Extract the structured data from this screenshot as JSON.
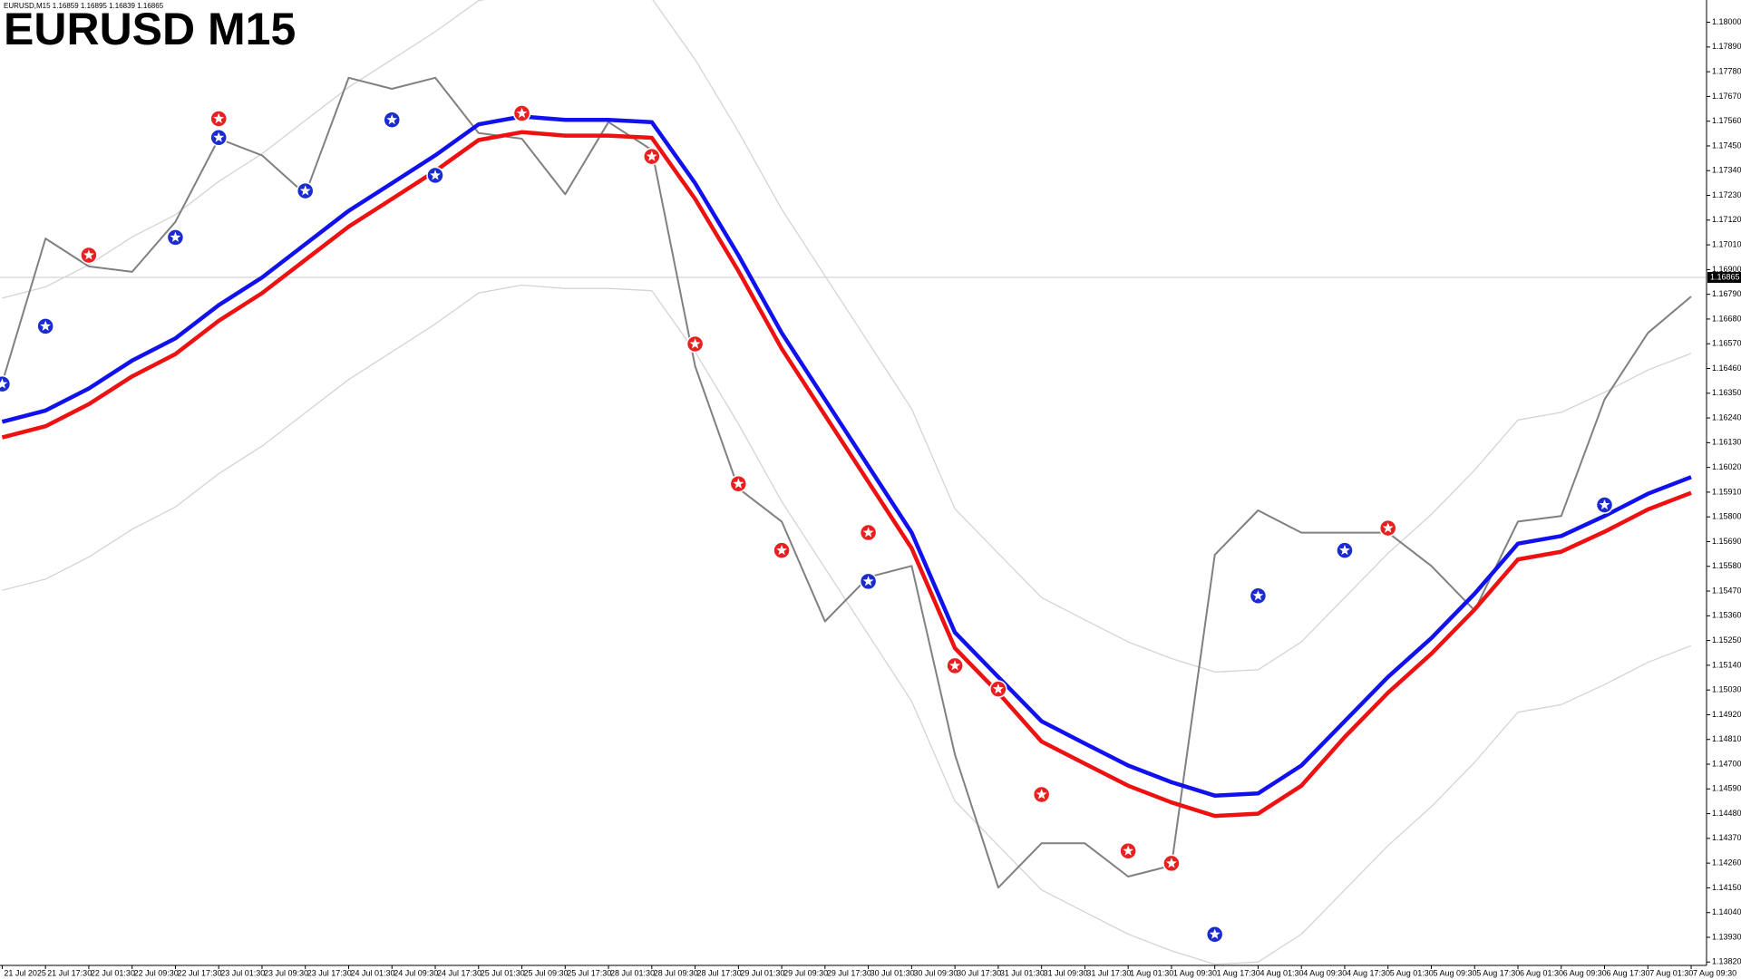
{
  "chart_data": {
    "type": "line",
    "title": "EURUSD M15",
    "header": "EURUSD,M15  1.16859 1.16895 1.16839 1.16865",
    "current_price": 1.16865,
    "current_price_color": "#c8c8c8",
    "categories": [
      "21 Jul 2025",
      "21 Jul 17:30",
      "22 Jul 01:30",
      "22 Jul 09:30",
      "22 Jul 17:30",
      "23 Jul 01:30",
      "23 Jul 09:30",
      "23 Jul 17:30",
      "24 Jul 01:30",
      "24 Jul 09:30",
      "24 Jul 17:30",
      "25 Jul 01:30",
      "25 Jul 09:30",
      "25 Jul 17:30",
      "28 Jul 01:30",
      "28 Jul 09:30",
      "28 Jul 17:30",
      "29 Jul 01:30",
      "29 Jul 09:30",
      "29 Jul 17:30",
      "30 Jul 01:30",
      "30 Jul 09:30",
      "30 Jul 17:30",
      "31 Jul 01:30",
      "31 Jul 09:30",
      "31 Jul 17:30",
      "1 Aug 01:30",
      "1 Aug 09:30",
      "1 Aug 17:30",
      "4 Aug 01:30",
      "4 Aug 09:30",
      "4 Aug 17:30",
      "5 Aug 01:30",
      "5 Aug 09:30",
      "5 Aug 17:30",
      "6 Aug 01:30",
      "6 Aug 09:30",
      "6 Aug 17:30",
      "7 Aug 01:30",
      "7 Aug 09:30"
    ],
    "series": [
      {
        "style": "band",
        "color": "#d4d4d4",
        "values": [
          1.16773,
          1.16823,
          1.16921,
          1.17045,
          1.17144,
          1.17292,
          1.17415,
          1.17563,
          1.17711,
          1.17834,
          1.17958,
          1.18096,
          1.18131,
          1.18116,
          1.18116,
          1.18106,
          1.17834,
          1.17514,
          1.17168,
          1.16872,
          1.16576,
          1.1628,
          1.15836,
          1.15638,
          1.15441,
          1.15342,
          1.15244,
          1.1517,
          1.1511,
          1.1512,
          1.15244,
          1.15441,
          1.15638,
          1.15811,
          1.16008,
          1.16231,
          1.16265,
          1.16354,
          1.16453,
          1.16527
        ]
      },
      {
        "style": "band",
        "color": "#d4d4d4",
        "values": [
          1.15473,
          1.15523,
          1.15621,
          1.15745,
          1.15844,
          1.15992,
          1.16115,
          1.16263,
          1.16411,
          1.16534,
          1.16658,
          1.16796,
          1.16831,
          1.16816,
          1.16816,
          1.16806,
          1.16534,
          1.16214,
          1.15868,
          1.15572,
          1.15276,
          1.1498,
          1.14536,
          1.14338,
          1.14141,
          1.14042,
          1.13944,
          1.1387,
          1.1381,
          1.1382,
          1.13944,
          1.14141,
          1.14338,
          1.14511,
          1.14708,
          1.14931,
          1.14965,
          1.15054,
          1.15153,
          1.15227
        ]
      },
      {
        "style": "price",
        "color": "#808080",
        "values": [
          1.16396,
          1.17038,
          1.16914,
          1.1689,
          1.17112,
          1.17482,
          1.17408,
          1.17235,
          1.17753,
          1.17704,
          1.17753,
          1.17507,
          1.17482,
          1.17235,
          1.17556,
          1.17432,
          1.1647,
          1.15927,
          1.15779,
          1.15335,
          1.15532,
          1.15582,
          1.14743,
          1.14151,
          1.14348,
          1.14348,
          1.142,
          1.14249,
          1.15631,
          1.15829,
          1.1573,
          1.1573,
          1.1573,
          1.15582,
          1.15384,
          1.15779,
          1.15804,
          1.16322,
          1.16618,
          1.1678
        ]
      },
      {
        "style": "ma",
        "color": "#ee1111",
        "values": [
          1.16153,
          1.16203,
          1.16301,
          1.16425,
          1.16524,
          1.16672,
          1.16795,
          1.16943,
          1.17091,
          1.17214,
          1.17338,
          1.17476,
          1.17511,
          1.17496,
          1.17496,
          1.17486,
          1.17214,
          1.16894,
          1.16548,
          1.16252,
          1.15956,
          1.1566,
          1.15216,
          1.15018,
          1.14801,
          1.14702,
          1.14604,
          1.1453,
          1.1447,
          1.1448,
          1.14604,
          1.14821,
          1.15018,
          1.15191,
          1.15388,
          1.15611,
          1.15645,
          1.15734,
          1.15833,
          1.15907
        ]
      },
      {
        "style": "ma",
        "color": "#1111ee",
        "values": [
          1.16223,
          1.16273,
          1.16371,
          1.16495,
          1.16594,
          1.16742,
          1.16865,
          1.17013,
          1.17161,
          1.17284,
          1.17408,
          1.17546,
          1.17581,
          1.17566,
          1.17566,
          1.17556,
          1.17284,
          1.16964,
          1.16618,
          1.16322,
          1.16026,
          1.1573,
          1.15286,
          1.15088,
          1.14891,
          1.14792,
          1.14694,
          1.1462,
          1.1456,
          1.1457,
          1.14694,
          1.14891,
          1.15088,
          1.15261,
          1.15458,
          1.15681,
          1.15715,
          1.15804,
          1.15903,
          1.15977
        ]
      },
      {
        "style": "marker",
        "color": "#e82020",
        "values": [
          null,
          null,
          1.16964,
          null,
          null,
          1.17571,
          null,
          null,
          null,
          null,
          null,
          null,
          1.17595,
          null,
          null,
          1.17403,
          1.16569,
          1.15947,
          1.15651,
          null,
          1.1573,
          null,
          1.15138,
          1.15034,
          1.14565,
          null,
          1.14314,
          1.14259,
          null,
          null,
          null,
          null,
          1.1575,
          null,
          null,
          null,
          null,
          null,
          null,
          null
        ]
      },
      {
        "style": "marker",
        "color": "#1a2bd0",
        "values": [
          1.16391,
          1.16648,
          null,
          null,
          1.17043,
          1.17487,
          null,
          1.1725,
          null,
          1.17566,
          1.17319,
          null,
          null,
          null,
          null,
          null,
          null,
          null,
          null,
          null,
          1.15513,
          null,
          null,
          null,
          null,
          null,
          null,
          null,
          1.13943,
          1.15449,
          null,
          1.15651,
          null,
          null,
          null,
          null,
          null,
          1.15853,
          null,
          null
        ]
      }
    ],
    "ylim": [
      1.13805,
      1.18099
    ],
    "yticks": [
      {
        "value": 1.18,
        "label": "1.18000"
      },
      {
        "value": 1.1789,
        "label": "1.17890"
      },
      {
        "value": 1.1778,
        "label": "1.17780"
      },
      {
        "value": 1.1767,
        "label": "1.17670"
      },
      {
        "value": 1.1756,
        "label": "1.17560"
      },
      {
        "value": 1.1745,
        "label": "1.17450"
      },
      {
        "value": 1.1734,
        "label": "1.17340"
      },
      {
        "value": 1.1723,
        "label": "1.17230"
      },
      {
        "value": 1.1712,
        "label": "1.17120"
      },
      {
        "value": 1.1701,
        "label": "1.17010"
      },
      {
        "value": 1.169,
        "label": "1.16900"
      },
      {
        "value": 1.1679,
        "label": "1.16790"
      },
      {
        "value": 1.1668,
        "label": "1.16680"
      },
      {
        "value": 1.1657,
        "label": "1.16570"
      },
      {
        "value": 1.1646,
        "label": "1.16460"
      },
      {
        "value": 1.1635,
        "label": "1.16350"
      },
      {
        "value": 1.1624,
        "label": "1.16240"
      },
      {
        "value": 1.1613,
        "label": "1.16130"
      },
      {
        "value": 1.1602,
        "label": "1.16020"
      },
      {
        "value": 1.1591,
        "label": "1.15910"
      },
      {
        "value": 1.158,
        "label": "1.15800"
      },
      {
        "value": 1.1569,
        "label": "1.15690"
      },
      {
        "value": 1.1558,
        "label": "1.15580"
      },
      {
        "value": 1.1547,
        "label": "1.15470"
      },
      {
        "value": 1.1536,
        "label": "1.15360"
      },
      {
        "value": 1.1525,
        "label": "1.15250"
      },
      {
        "value": 1.1514,
        "label": "1.15140"
      },
      {
        "value": 1.1503,
        "label": "1.15030"
      },
      {
        "value": 1.1492,
        "label": "1.14920"
      },
      {
        "value": 1.1481,
        "label": "1.14810"
      },
      {
        "value": 1.147,
        "label": "1.14700"
      },
      {
        "value": 1.1459,
        "label": "1.14590"
      },
      {
        "value": 1.1448,
        "label": "1.14480"
      },
      {
        "value": 1.1437,
        "label": "1.14370"
      },
      {
        "value": 1.1426,
        "label": "1.14260"
      },
      {
        "value": 1.1415,
        "label": "1.14150"
      },
      {
        "value": 1.1404,
        "label": "1.14040"
      },
      {
        "value": 1.1393,
        "label": "1.13930"
      },
      {
        "value": 1.1382,
        "label": "1.13820"
      }
    ],
    "grid": false
  }
}
